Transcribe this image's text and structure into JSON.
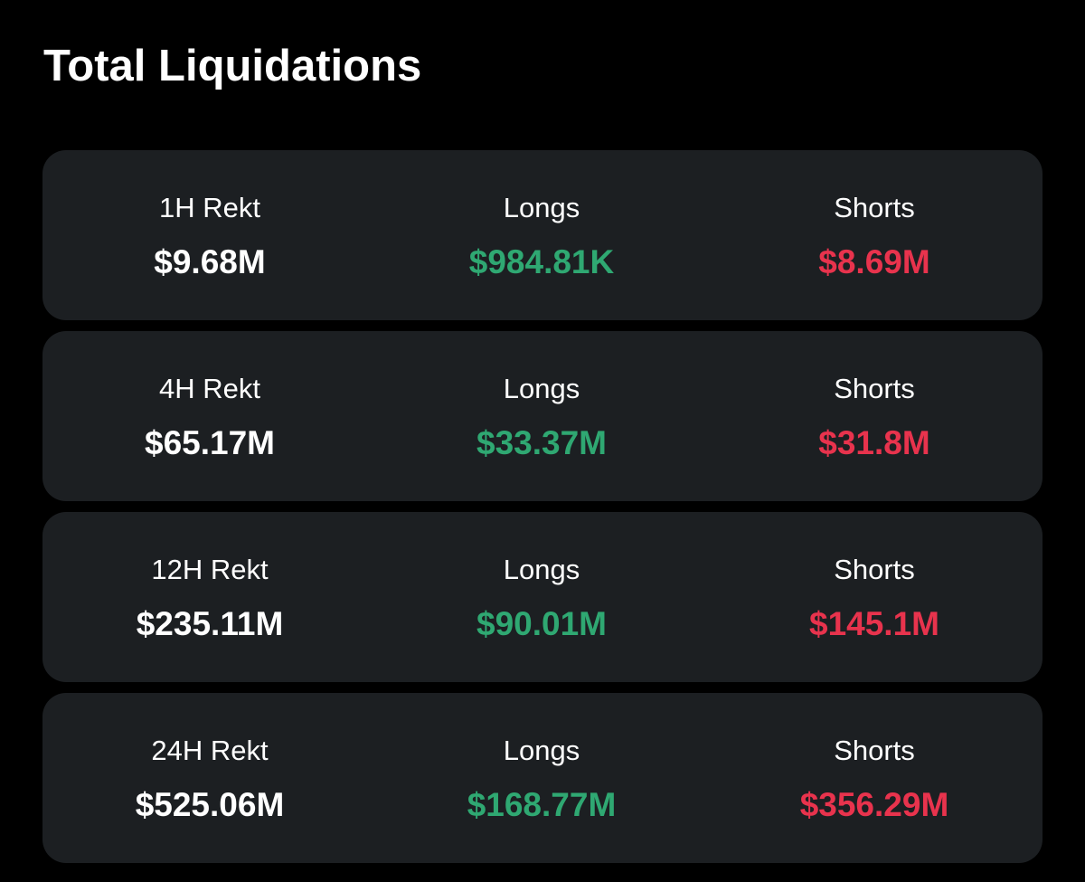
{
  "title": "Total Liquidations",
  "colors": {
    "background": "#000000",
    "card": "#1c1f22",
    "text": "#ffffff",
    "longs": "#2fa872",
    "shorts": "#e8334d"
  },
  "rows": [
    {
      "period_label": "1H Rekt",
      "total": "$9.68M",
      "longs_label": "Longs",
      "longs": "$984.81K",
      "shorts_label": "Shorts",
      "shorts": "$8.69M"
    },
    {
      "period_label": "4H Rekt",
      "total": "$65.17M",
      "longs_label": "Longs",
      "longs": "$33.37M",
      "shorts_label": "Shorts",
      "shorts": "$31.8M"
    },
    {
      "period_label": "12H Rekt",
      "total": "$235.11M",
      "longs_label": "Longs",
      "longs": "$90.01M",
      "shorts_label": "Shorts",
      "shorts": "$145.1M"
    },
    {
      "period_label": "24H Rekt",
      "total": "$525.06M",
      "longs_label": "Longs",
      "longs": "$168.77M",
      "shorts_label": "Shorts",
      "shorts": "$356.29M"
    }
  ]
}
